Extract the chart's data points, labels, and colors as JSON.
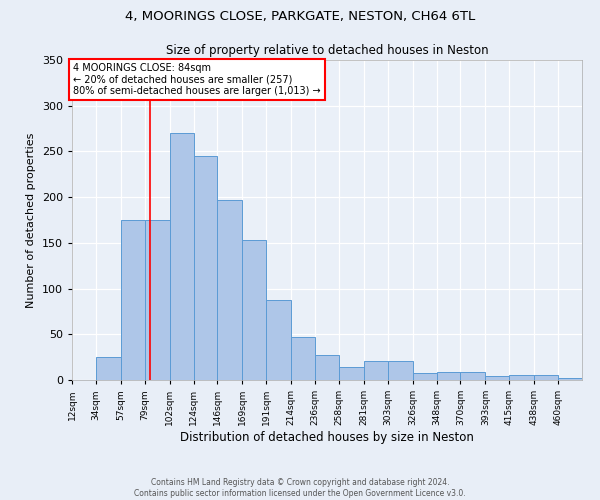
{
  "title1": "4, MOORINGS CLOSE, PARKGATE, NESTON, CH64 6TL",
  "title2": "Size of property relative to detached houses in Neston",
  "xlabel": "Distribution of detached houses by size in Neston",
  "ylabel": "Number of detached properties",
  "bar_labels": [
    "12sqm",
    "34sqm",
    "57sqm",
    "79sqm",
    "102sqm",
    "124sqm",
    "146sqm",
    "169sqm",
    "191sqm",
    "214sqm",
    "236sqm",
    "258sqm",
    "281sqm",
    "303sqm",
    "326sqm",
    "348sqm",
    "370sqm",
    "393sqm",
    "415sqm",
    "438sqm",
    "460sqm"
  ],
  "bar_values": [
    0,
    25,
    175,
    175,
    270,
    245,
    197,
    153,
    88,
    47,
    27,
    14,
    21,
    21,
    8,
    9,
    9,
    4,
    6,
    6,
    2
  ],
  "bar_color": "#aec6e8",
  "bar_edge_color": "#5b9bd5",
  "red_line_x": 84,
  "x_bin_edges": [
    12,
    34,
    57,
    79,
    102,
    124,
    146,
    169,
    191,
    214,
    236,
    258,
    281,
    303,
    326,
    348,
    370,
    393,
    415,
    438,
    460
  ],
  "ylim": [
    0,
    350
  ],
  "yticks": [
    0,
    50,
    100,
    150,
    200,
    250,
    300,
    350
  ],
  "annotation_title": "4 MOORINGS CLOSE: 84sqm",
  "annotation_line1": "← 20% of detached houses are smaller (257)",
  "annotation_line2": "80% of semi-detached houses are larger (1,013) →",
  "footer1": "Contains HM Land Registry data © Crown copyright and database right 2024.",
  "footer2": "Contains public sector information licensed under the Open Government Licence v3.0.",
  "bg_color": "#e8eef7",
  "plot_bg_color": "#eaf0f8"
}
